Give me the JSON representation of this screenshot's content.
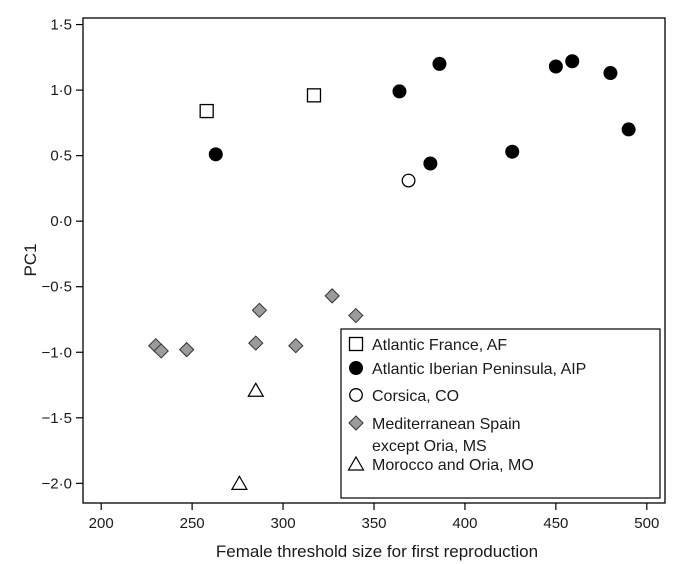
{
  "chart_data": {
    "type": "scatter",
    "title": "",
    "xlabel": "Female threshold size for first reproduction",
    "ylabel": "PC1",
    "xlim": [
      190,
      510
    ],
    "ylim": [
      -2.15,
      1.55
    ],
    "x_ticks": [
      200,
      250,
      300,
      350,
      400,
      450,
      500
    ],
    "y_ticks": [
      -2.0,
      -1.5,
      -1.0,
      -0.5,
      0.0,
      0.5,
      1.0,
      1.5
    ],
    "x_tick_labels": [
      "200",
      "250",
      "300",
      "350",
      "400",
      "450",
      "500"
    ],
    "y_tick_labels": [
      "−2·0",
      "−1·5",
      "−1·0",
      "−0·5",
      "0·0",
      "0·5",
      "1·0",
      "1·5"
    ],
    "grid": false,
    "legend_position": "bottom-right",
    "series": [
      {
        "name": "Atlantic France, AF",
        "marker": "open-square",
        "points": [
          [
            258,
            0.84
          ],
          [
            317,
            0.96
          ]
        ]
      },
      {
        "name": "Atlantic Iberian Peninsula, AIP",
        "marker": "filled-circle",
        "points": [
          [
            263,
            0.51
          ],
          [
            364,
            0.99
          ],
          [
            386,
            1.2
          ],
          [
            381,
            0.44
          ],
          [
            426,
            0.53
          ],
          [
            450,
            1.18
          ],
          [
            459,
            1.22
          ],
          [
            480,
            1.13
          ],
          [
            490,
            0.7
          ]
        ]
      },
      {
        "name": "Corsica, CO",
        "marker": "open-circle",
        "points": [
          [
            369,
            0.31
          ]
        ]
      },
      {
        "name": "Mediterranean Spain except Oria, MS",
        "name_lines": [
          "Mediterranean Spain",
          "except Oria, MS"
        ],
        "marker": "grey-diamond",
        "points": [
          [
            230,
            -0.95
          ],
          [
            233,
            -0.99
          ],
          [
            247,
            -0.98
          ],
          [
            285,
            -0.93
          ],
          [
            287,
            -0.68
          ],
          [
            307,
            -0.95
          ],
          [
            327,
            -0.57
          ],
          [
            340,
            -0.72
          ]
        ]
      },
      {
        "name": "Morocco and Oria, MO",
        "marker": "open-triangle",
        "points": [
          [
            285,
            -1.29
          ],
          [
            276,
            -2.0
          ]
        ]
      }
    ]
  }
}
